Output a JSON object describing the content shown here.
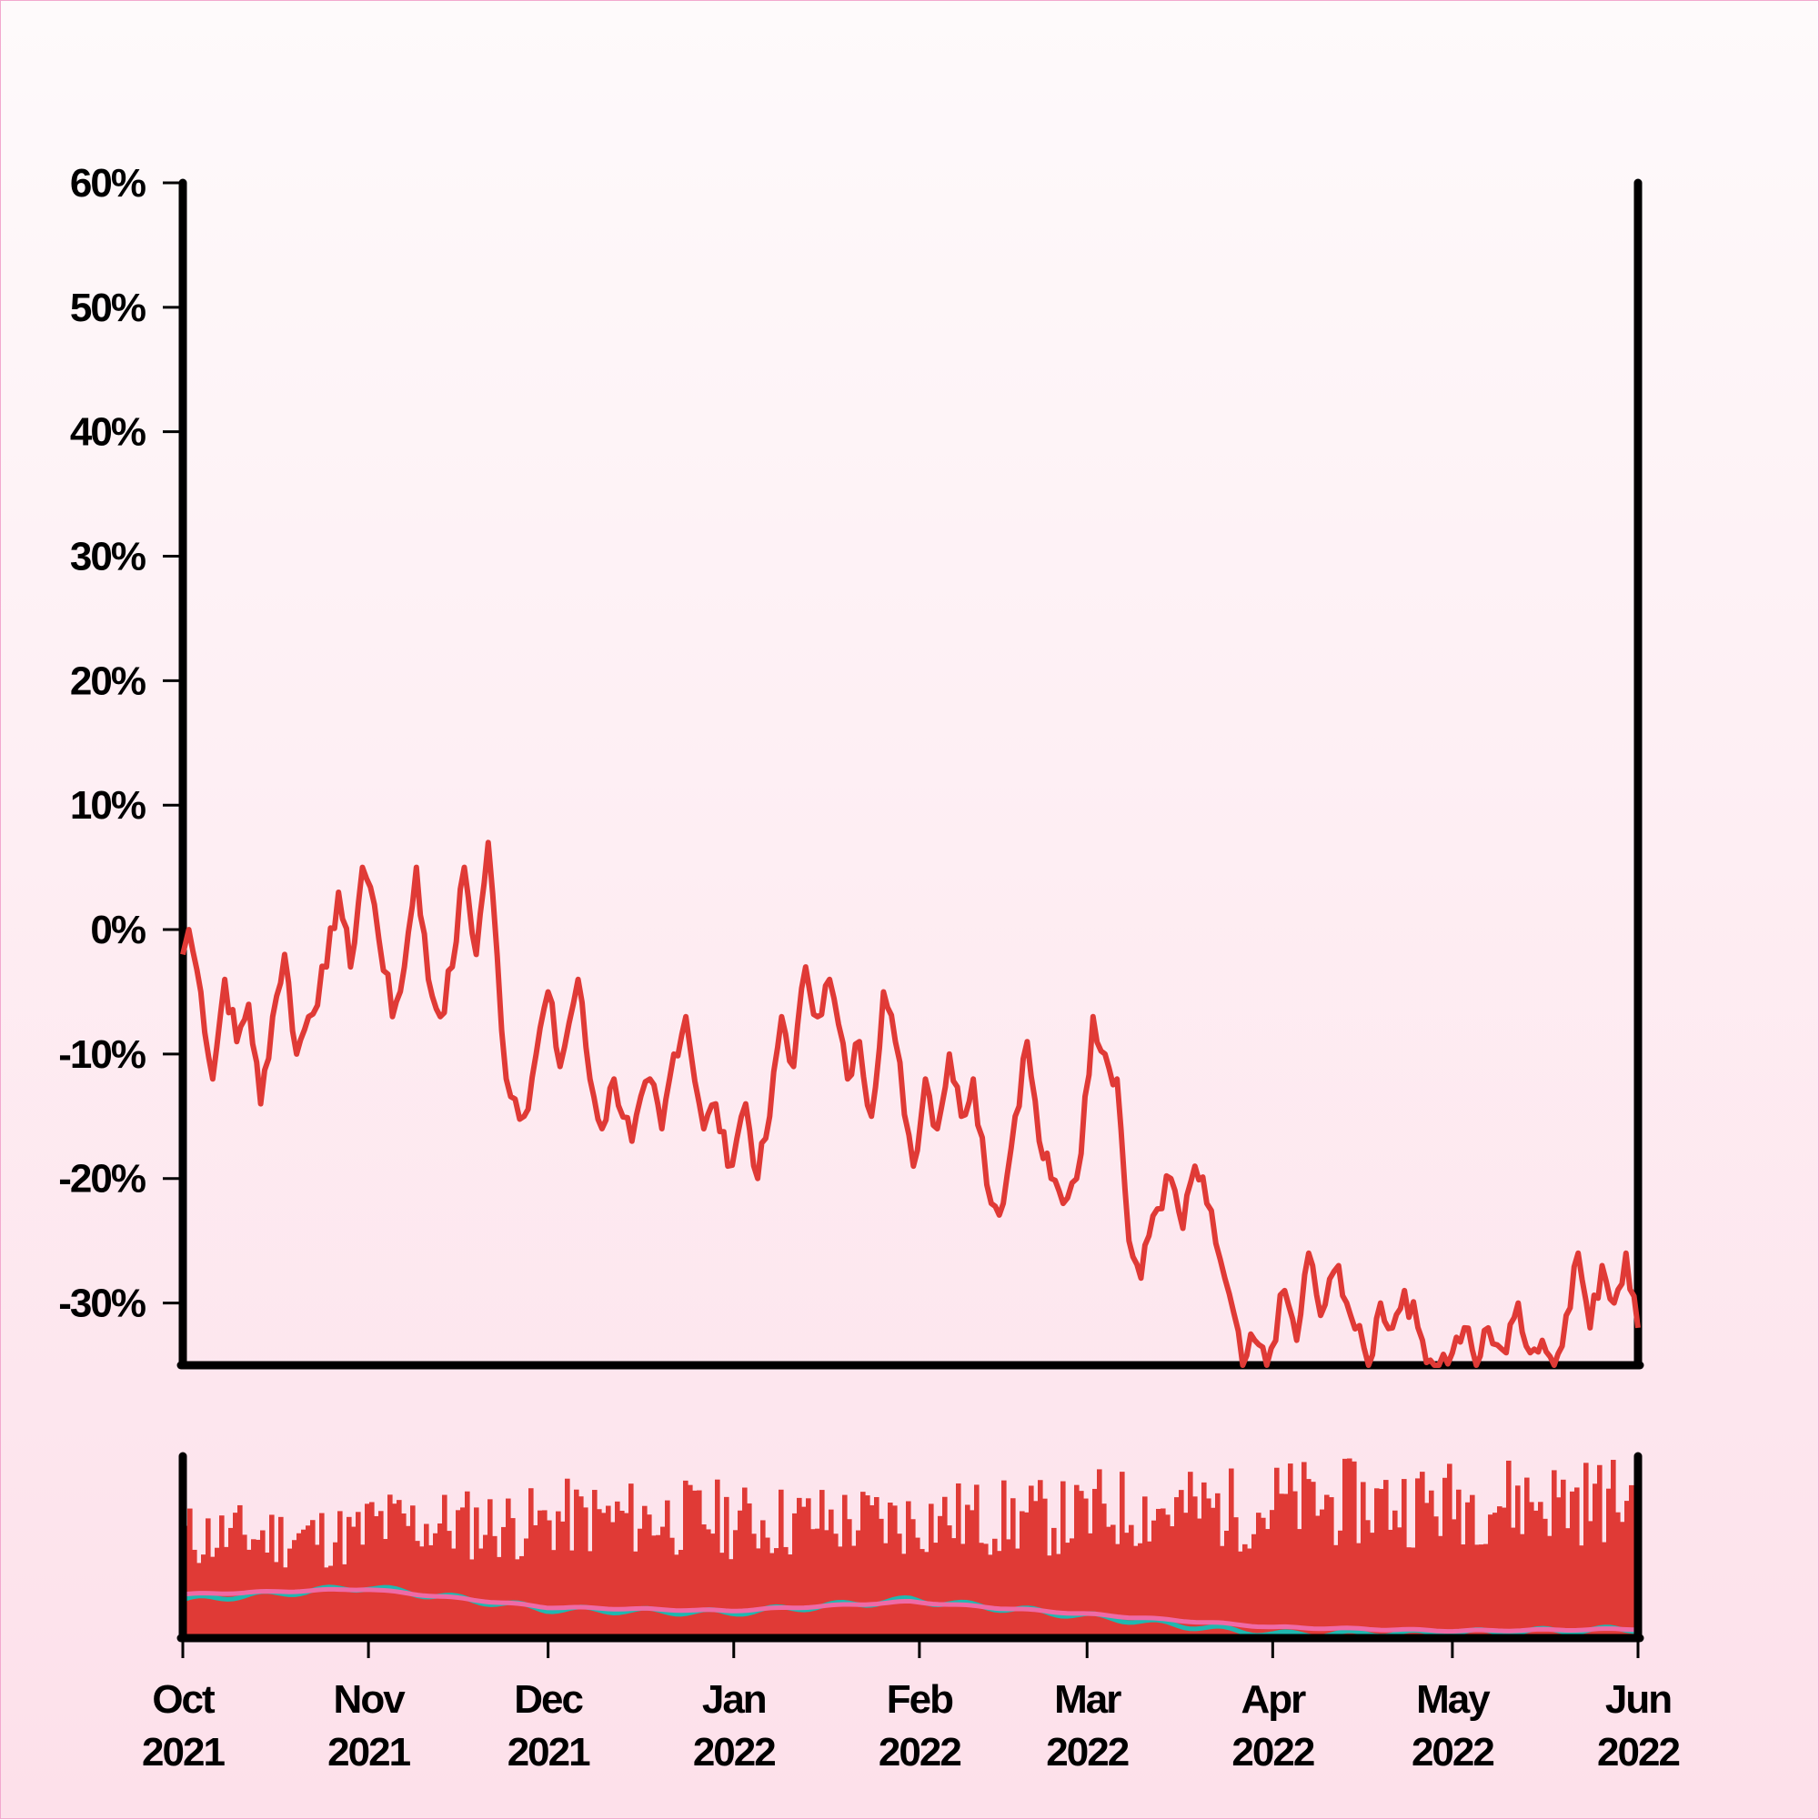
{
  "chart_data": {
    "type": "line",
    "x_axis": {
      "type": "date",
      "range": [
        "2021-10-01",
        "2022-06-01"
      ],
      "tick_labels": [
        {
          "month": "Oct",
          "year": "2021",
          "date": "2021-10-01"
        },
        {
          "month": "Nov",
          "year": "2021",
          "date": "2021-11-01"
        },
        {
          "month": "Dec",
          "year": "2021",
          "date": "2021-12-01"
        },
        {
          "month": "Jan",
          "year": "2022",
          "date": "2022-01-01"
        },
        {
          "month": "Feb",
          "year": "2022",
          "date": "2022-02-01"
        },
        {
          "month": "Mar",
          "year": "2022",
          "date": "2022-03-01"
        },
        {
          "month": "Apr",
          "year": "2022",
          "date": "2022-04-01"
        },
        {
          "month": "May",
          "year": "2022",
          "date": "2022-05-01"
        },
        {
          "month": "Jun",
          "year": "2022",
          "date": "2022-06-01"
        }
      ]
    },
    "y_axis": {
      "ylim": [
        -35,
        60
      ],
      "tick_labels": [
        "60%",
        "50%",
        "40%",
        "30%",
        "20%",
        "10%",
        "0%",
        "-10%",
        "-20%",
        "-30%"
      ],
      "tick_values": [
        60,
        50,
        40,
        30,
        20,
        10,
        0,
        -10,
        -20,
        -30
      ]
    },
    "grid": false,
    "legend": "none",
    "price_series": {
      "color": "#e03a36",
      "points": [
        [
          "2021-10-01",
          -2
        ],
        [
          "2021-10-02",
          0
        ],
        [
          "2021-10-04",
          -5
        ],
        [
          "2021-10-06",
          -12
        ],
        [
          "2021-10-08",
          -4
        ],
        [
          "2021-10-10",
          -9
        ],
        [
          "2021-10-12",
          -6
        ],
        [
          "2021-10-14",
          -14
        ],
        [
          "2021-10-16",
          -7
        ],
        [
          "2021-10-18",
          -2
        ],
        [
          "2021-10-20",
          -10
        ],
        [
          "2021-10-22",
          -7
        ],
        [
          "2021-10-25",
          -3
        ],
        [
          "2021-10-27",
          3
        ],
        [
          "2021-10-29",
          -3
        ],
        [
          "2021-10-31",
          5
        ],
        [
          "2021-11-02",
          2
        ],
        [
          "2021-11-05",
          -7
        ],
        [
          "2021-11-07",
          -3
        ],
        [
          "2021-11-09",
          5
        ],
        [
          "2021-11-11",
          -4
        ],
        [
          "2021-11-13",
          -7
        ],
        [
          "2021-11-15",
          -3
        ],
        [
          "2021-11-17",
          5
        ],
        [
          "2021-11-19",
          -2
        ],
        [
          "2021-11-21",
          7
        ],
        [
          "2021-11-24",
          -12
        ],
        [
          "2021-11-27",
          -15
        ],
        [
          "2021-11-29",
          -10
        ],
        [
          "2021-12-01",
          -5
        ],
        [
          "2021-12-03",
          -11
        ],
        [
          "2021-12-06",
          -4
        ],
        [
          "2021-12-08",
          -12
        ],
        [
          "2021-12-10",
          -16
        ],
        [
          "2021-12-12",
          -12
        ],
        [
          "2021-12-15",
          -17
        ],
        [
          "2021-12-18",
          -12
        ],
        [
          "2021-12-20",
          -16
        ],
        [
          "2021-12-22",
          -10
        ],
        [
          "2021-12-24",
          -7
        ],
        [
          "2021-12-27",
          -16
        ],
        [
          "2021-12-29",
          -14
        ],
        [
          "2021-12-31",
          -19
        ],
        [
          "2022-01-03",
          -14
        ],
        [
          "2022-01-05",
          -20
        ],
        [
          "2022-01-07",
          -15
        ],
        [
          "2022-01-09",
          -7
        ],
        [
          "2022-01-11",
          -11
        ],
        [
          "2022-01-13",
          -3
        ],
        [
          "2022-01-15",
          -7
        ],
        [
          "2022-01-17",
          -4
        ],
        [
          "2022-01-20",
          -12
        ],
        [
          "2022-01-22",
          -9
        ],
        [
          "2022-01-24",
          -15
        ],
        [
          "2022-01-26",
          -5
        ],
        [
          "2022-01-28",
          -9
        ],
        [
          "2022-01-31",
          -19
        ],
        [
          "2022-02-02",
          -12
        ],
        [
          "2022-02-04",
          -16
        ],
        [
          "2022-02-06",
          -10
        ],
        [
          "2022-02-08",
          -15
        ],
        [
          "2022-02-10",
          -12
        ],
        [
          "2022-02-13",
          -22
        ],
        [
          "2022-02-15",
          -22
        ],
        [
          "2022-02-17",
          -15
        ],
        [
          "2022-02-19",
          -9
        ],
        [
          "2022-02-21",
          -17
        ],
        [
          "2022-02-23",
          -20
        ],
        [
          "2022-02-25",
          -22
        ],
        [
          "2022-02-28",
          -18
        ],
        [
          "2022-03-02",
          -7
        ],
        [
          "2022-03-04",
          -10
        ],
        [
          "2022-03-06",
          -12
        ],
        [
          "2022-03-08",
          -25
        ],
        [
          "2022-03-10",
          -28
        ],
        [
          "2022-03-12",
          -23
        ],
        [
          "2022-03-15",
          -20
        ],
        [
          "2022-03-17",
          -24
        ],
        [
          "2022-03-19",
          -19
        ],
        [
          "2022-03-21",
          -22
        ],
        [
          "2022-03-24",
          -28
        ],
        [
          "2022-03-27",
          -35
        ],
        [
          "2022-03-29",
          -33
        ],
        [
          "2022-03-31",
          -35
        ],
        [
          "2022-04-03",
          -29
        ],
        [
          "2022-04-05",
          -33
        ],
        [
          "2022-04-07",
          -26
        ],
        [
          "2022-04-09",
          -31
        ],
        [
          "2022-04-12",
          -27
        ],
        [
          "2022-04-14",
          -31
        ],
        [
          "2022-04-17",
          -35
        ],
        [
          "2022-04-19",
          -30
        ],
        [
          "2022-04-21",
          -32
        ],
        [
          "2022-04-23",
          -29
        ],
        [
          "2022-04-26",
          -33
        ],
        [
          "2022-04-28",
          -35
        ],
        [
          "2022-05-01",
          -34
        ],
        [
          "2022-05-03",
          -32
        ],
        [
          "2022-05-05",
          -35
        ],
        [
          "2022-05-07",
          -32
        ],
        [
          "2022-05-10",
          -34
        ],
        [
          "2022-05-12",
          -30
        ],
        [
          "2022-05-14",
          -34
        ],
        [
          "2022-05-16",
          -33
        ],
        [
          "2022-05-18",
          -35
        ],
        [
          "2022-05-20",
          -31
        ],
        [
          "2022-05-22",
          -26
        ],
        [
          "2022-05-24",
          -32
        ],
        [
          "2022-05-26",
          -27
        ],
        [
          "2022-05-28",
          -30
        ],
        [
          "2022-05-30",
          -26
        ],
        [
          "2022-06-01",
          -32
        ]
      ]
    },
    "volume_panel": {
      "bar_color": "#e03a36",
      "moving_average_colors": [
        "#1fb8b0",
        "#f06aa6"
      ],
      "volume_monthly_level": [
        0.68,
        0.76,
        0.8,
        0.78,
        0.8,
        0.86,
        0.9,
        0.92
      ],
      "ma_short_monthly": [
        0.21,
        0.28,
        0.16,
        0.14,
        0.21,
        0.12,
        0.02,
        0.03,
        0.05
      ],
      "ma_long_monthly": [
        0.24,
        0.27,
        0.17,
        0.15,
        0.2,
        0.13,
        0.06,
        0.04,
        0.05
      ]
    }
  }
}
